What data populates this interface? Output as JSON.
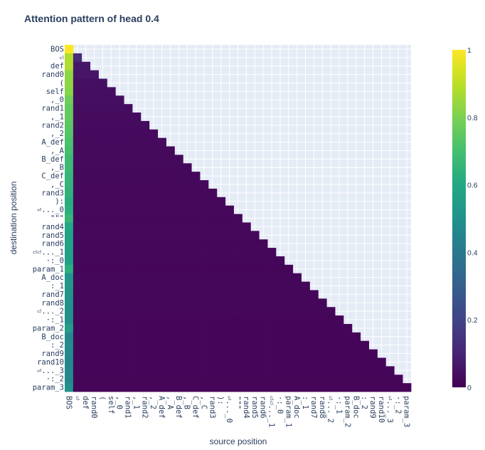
{
  "chart_data": {
    "type": "heatmap",
    "title": "Attention pattern of head 0.4",
    "xlabel": "source position",
    "ylabel": "destination position",
    "tokens": [
      "BOS",
      "⏎",
      "def",
      "rand0",
      "(",
      "self",
      ",_0",
      "rand1",
      ",_1",
      "rand2",
      ",_2",
      "A_def",
      ",_A",
      "B_def",
      ",_B",
      "C_def",
      ",_C",
      "rand3",
      "):",
      "⏎..._0",
      "\"\"\"",
      "rand4",
      "rand5",
      "rand6",
      "⏎⏎..._1",
      "·:_0",
      "param_1",
      "A_doc",
      ":_1",
      "rand7",
      "rand8",
      "⏎..._2",
      "·:_1",
      "param_2",
      "B_doc",
      ":_2",
      "rand9",
      "rand10",
      "⏎..._3",
      "·:_2",
      "param_3"
    ],
    "mask": "lower-triangular (source ≤ destination); upper triangle empty",
    "z_source_BOS": [
      1.0,
      0.88,
      0.88,
      0.83,
      0.83,
      0.82,
      0.78,
      0.76,
      0.76,
      0.74,
      0.73,
      0.71,
      0.7,
      0.68,
      0.68,
      0.66,
      0.65,
      0.64,
      0.62,
      0.63,
      0.66,
      0.6,
      0.58,
      0.58,
      0.57,
      0.56,
      0.63,
      0.52,
      0.53,
      0.52,
      0.51,
      0.5,
      0.5,
      0.55,
      0.47,
      0.48,
      0.47,
      0.46,
      0.47,
      0.47,
      0.5
    ],
    "z_other_sources": "remaining attention (1 − BOS value) spread evenly over sources 1..destination",
    "colorscale": "viridis",
    "zlim": [
      0,
      1
    ],
    "colorbar_ticks": [
      "0",
      "0.2",
      "0.4",
      "0.6",
      "0.8",
      "1"
    ]
  }
}
